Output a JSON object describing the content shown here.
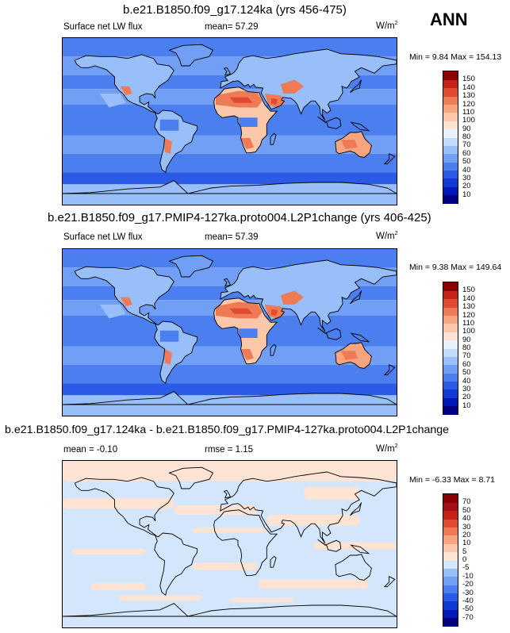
{
  "season": "ANN",
  "units_base": "W/m",
  "units_exp": "2",
  "panels": [
    {
      "title": "b.e21.B1850.f09_g17.124ka (yrs 456-475)",
      "variable": "Surface net LW flux",
      "mean_label": "mean=",
      "mean": "57.29",
      "min_label": "Min =",
      "min": "9.84",
      "max_label": "Max =",
      "max": "154.13"
    },
    {
      "title": "b.e21.B1850.f09_g17.PMIP4-127ka.proto004.L2P1change (yrs 406-425)",
      "variable": "Surface net LW flux",
      "mean_label": "mean=",
      "mean": "57.39",
      "min_label": "Min =",
      "min": "9.38",
      "max_label": "Max =",
      "max": "149.64"
    },
    {
      "title": "b.e21.B1850.f09_g17.124ka - b.e21.B1850.f09_g17.PMIP4-127ka.proto004.L2P1change",
      "mean_label": "mean =",
      "mean": "-0.10",
      "rmse_label": "rmse =",
      "rmse": "1.15",
      "min_label": "Min =",
      "min": "-6.33",
      "max_label": "Max =",
      "max": "8.71"
    }
  ],
  "chart_data": [
    {
      "type": "heatmap",
      "title": "b.e21.B1850.f09_g17.124ka (yrs 456-475)",
      "field": "Surface net LW flux",
      "units": "W/m2",
      "mean": 57.29,
      "min": 9.84,
      "max": 154.13,
      "colorbar_levels": [
        10,
        20,
        30,
        40,
        50,
        60,
        70,
        80,
        90,
        100,
        110,
        120,
        130,
        140,
        150
      ],
      "colorbar_colors": [
        "#000080",
        "#0018b8",
        "#1039d6",
        "#2a5ae6",
        "#4b7ff0",
        "#709ff5",
        "#98bff9",
        "#c3dbfc",
        "#e9f1fd",
        "#fde3d3",
        "#fcc8a9",
        "#f8a47e",
        "#ef7a56",
        "#e04b31",
        "#c52218",
        "#8b0000"
      ]
    },
    {
      "type": "heatmap",
      "title": "b.e21.B1850.f09_g17.PMIP4-127ka.proto004.L2P1change (yrs 406-425)",
      "field": "Surface net LW flux",
      "units": "W/m2",
      "mean": 57.39,
      "min": 9.38,
      "max": 149.64,
      "colorbar_levels": [
        10,
        20,
        30,
        40,
        50,
        60,
        70,
        80,
        90,
        100,
        110,
        120,
        130,
        140,
        150
      ],
      "colorbar_colors": [
        "#000080",
        "#0018b8",
        "#1039d6",
        "#2a5ae6",
        "#4b7ff0",
        "#709ff5",
        "#98bff9",
        "#c3dbfc",
        "#e9f1fd",
        "#fde3d3",
        "#fcc8a9",
        "#f8a47e",
        "#ef7a56",
        "#e04b31",
        "#c52218",
        "#8b0000"
      ]
    },
    {
      "type": "heatmap",
      "title": "b.e21.B1850.f09_g17.124ka - b.e21.B1850.f09_g17.PMIP4-127ka.proto004.L2P1change",
      "field": "Surface net LW flux difference",
      "units": "W/m2",
      "mean": -0.1,
      "rmse": 1.15,
      "min": -6.33,
      "max": 8.71,
      "colorbar_levels": [
        -70,
        -50,
        -40,
        -30,
        -20,
        -10,
        -5,
        0,
        5,
        10,
        20,
        30,
        40,
        50,
        70
      ],
      "colorbar_colors": [
        "#000080",
        "#0018b8",
        "#1039d6",
        "#2a5ae6",
        "#4b7ff0",
        "#709ff5",
        "#98bff9",
        "#d4e6fb",
        "#fde3d3",
        "#fcc8a9",
        "#f8a47e",
        "#ef7a56",
        "#e04b31",
        "#c52218",
        "#a50f15",
        "#8b0000"
      ]
    }
  ]
}
